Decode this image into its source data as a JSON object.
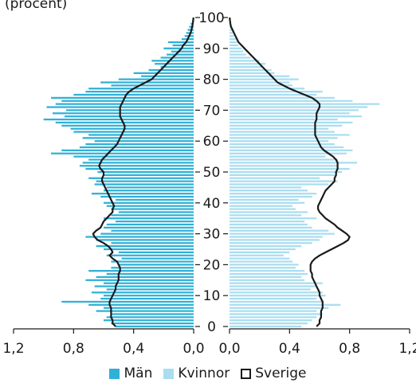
{
  "chart_data": {
    "type": "bar",
    "title": "(procent)",
    "layout": "population-pyramid",
    "ages": [
      0,
      1,
      2,
      3,
      4,
      5,
      6,
      7,
      8,
      9,
      10,
      11,
      12,
      13,
      14,
      15,
      16,
      17,
      18,
      19,
      20,
      21,
      22,
      23,
      24,
      25,
      26,
      27,
      28,
      29,
      30,
      31,
      32,
      33,
      34,
      35,
      36,
      37,
      38,
      39,
      40,
      41,
      42,
      43,
      44,
      45,
      46,
      47,
      48,
      49,
      50,
      51,
      52,
      53,
      54,
      55,
      56,
      57,
      58,
      59,
      60,
      61,
      62,
      63,
      64,
      65,
      66,
      67,
      68,
      69,
      70,
      71,
      72,
      73,
      74,
      75,
      76,
      77,
      78,
      79,
      80,
      81,
      82,
      83,
      84,
      85,
      86,
      87,
      88,
      89,
      90,
      91,
      92,
      93,
      94,
      95,
      96,
      97,
      98,
      99,
      100
    ],
    "y_ticks": [
      0,
      10,
      20,
      30,
      40,
      50,
      60,
      70,
      80,
      90,
      100
    ],
    "y_tick_labels": [
      "0",
      "10",
      "20",
      "30",
      "40",
      "50",
      "60",
      "70",
      "80",
      "90",
      "100"
    ],
    "x_tick_labels_left": [
      "1,2",
      "0,8",
      "0,4",
      "0,0"
    ],
    "x_tick_values_left": [
      1.2,
      0.8,
      0.4,
      0.0
    ],
    "x_tick_labels_right": [
      "0,0",
      "0,4",
      "0,8",
      "1,2"
    ],
    "x_tick_values_right": [
      0.0,
      0.4,
      0.8,
      1.2
    ],
    "xlim": [
      0,
      1.2
    ],
    "colors": {
      "man": "#2fb0d6",
      "kvinnor": "#a9ddf0",
      "sverige": "#1a1a1a"
    },
    "series": [
      {
        "name": "Män",
        "side": "left",
        "values": [
          0.52,
          0.55,
          0.6,
          0.58,
          0.55,
          0.65,
          0.6,
          0.7,
          0.88,
          0.62,
          0.6,
          0.68,
          0.58,
          0.66,
          0.6,
          0.72,
          0.65,
          0.58,
          0.7,
          0.55,
          0.5,
          0.55,
          0.48,
          0.58,
          0.5,
          0.6,
          0.65,
          0.55,
          0.65,
          0.72,
          0.62,
          0.55,
          0.6,
          0.58,
          0.52,
          0.6,
          0.55,
          0.5,
          0.55,
          0.58,
          0.6,
          0.52,
          0.62,
          0.68,
          0.6,
          0.58,
          0.66,
          0.65,
          0.7,
          0.6,
          0.64,
          0.72,
          0.76,
          0.74,
          0.7,
          0.8,
          0.95,
          0.88,
          0.76,
          0.72,
          0.66,
          0.74,
          0.7,
          0.8,
          0.82,
          0.88,
          0.92,
          1.0,
          0.86,
          0.94,
          0.85,
          0.98,
          0.92,
          0.88,
          0.95,
          0.8,
          0.72,
          0.7,
          0.55,
          0.62,
          0.5,
          0.35,
          0.4,
          0.3,
          0.22,
          0.26,
          0.28,
          0.22,
          0.18,
          0.15,
          0.2,
          0.14,
          0.17,
          0.08,
          0.06,
          0.05,
          0.04,
          0.03,
          0.02,
          0.01,
          0.0
        ]
      },
      {
        "name": "Kvinnor",
        "side": "right",
        "values": [
          0.48,
          0.52,
          0.55,
          0.58,
          0.62,
          0.58,
          0.66,
          0.74,
          0.62,
          0.58,
          0.64,
          0.62,
          0.54,
          0.58,
          0.62,
          0.5,
          0.48,
          0.52,
          0.5,
          0.44,
          0.46,
          0.42,
          0.4,
          0.36,
          0.4,
          0.44,
          0.48,
          0.55,
          0.6,
          0.62,
          0.7,
          0.66,
          0.55,
          0.52,
          0.5,
          0.58,
          0.48,
          0.52,
          0.44,
          0.42,
          0.5,
          0.46,
          0.55,
          0.58,
          0.52,
          0.48,
          0.66,
          0.72,
          0.6,
          0.7,
          0.75,
          0.8,
          0.72,
          0.85,
          0.72,
          0.64,
          0.78,
          0.82,
          0.76,
          0.7,
          0.66,
          0.72,
          0.8,
          0.7,
          0.66,
          0.75,
          0.82,
          0.72,
          0.88,
          0.8,
          0.86,
          0.92,
          1.0,
          0.82,
          0.7,
          0.58,
          0.62,
          0.5,
          0.42,
          0.4,
          0.46,
          0.4,
          0.3,
          0.28,
          0.22,
          0.24,
          0.2,
          0.14,
          0.11,
          0.09,
          0.08,
          0.06,
          0.05,
          0.04,
          0.03,
          0.02,
          0.02,
          0.01,
          0.01,
          0.0,
          0.0
        ]
      },
      {
        "name": "Sverige",
        "type": "line",
        "left": [
          0.52,
          0.54,
          0.54,
          0.55,
          0.55,
          0.55,
          0.55,
          0.56,
          0.56,
          0.55,
          0.54,
          0.53,
          0.52,
          0.52,
          0.51,
          0.5,
          0.5,
          0.5,
          0.49,
          0.49,
          0.5,
          0.51,
          0.54,
          0.56,
          0.54,
          0.55,
          0.57,
          0.6,
          0.64,
          0.66,
          0.67,
          0.65,
          0.62,
          0.61,
          0.6,
          0.58,
          0.56,
          0.54,
          0.54,
          0.53,
          0.54,
          0.55,
          0.56,
          0.57,
          0.58,
          0.59,
          0.6,
          0.61,
          0.61,
          0.6,
          0.6,
          0.62,
          0.63,
          0.62,
          0.61,
          0.59,
          0.57,
          0.55,
          0.53,
          0.51,
          0.5,
          0.49,
          0.48,
          0.47,
          0.46,
          0.46,
          0.47,
          0.48,
          0.49,
          0.49,
          0.49,
          0.49,
          0.48,
          0.47,
          0.46,
          0.45,
          0.43,
          0.4,
          0.36,
          0.32,
          0.28,
          0.26,
          0.24,
          0.22,
          0.2,
          0.18,
          0.16,
          0.14,
          0.12,
          0.1,
          0.08,
          0.07,
          0.05,
          0.04,
          0.03,
          0.02,
          0.015,
          0.01,
          0.006,
          0.003,
          0.001
        ],
        "right": [
          0.58,
          0.6,
          0.6,
          0.61,
          0.61,
          0.61,
          0.62,
          0.62,
          0.62,
          0.61,
          0.6,
          0.6,
          0.59,
          0.58,
          0.57,
          0.56,
          0.55,
          0.55,
          0.54,
          0.54,
          0.54,
          0.55,
          0.57,
          0.6,
          0.64,
          0.68,
          0.72,
          0.76,
          0.79,
          0.8,
          0.78,
          0.75,
          0.72,
          0.7,
          0.67,
          0.64,
          0.62,
          0.6,
          0.59,
          0.59,
          0.6,
          0.61,
          0.62,
          0.63,
          0.64,
          0.66,
          0.68,
          0.7,
          0.7,
          0.71,
          0.71,
          0.72,
          0.72,
          0.72,
          0.71,
          0.69,
          0.66,
          0.63,
          0.61,
          0.6,
          0.59,
          0.58,
          0.57,
          0.57,
          0.57,
          0.57,
          0.57,
          0.58,
          0.58,
          0.58,
          0.59,
          0.6,
          0.6,
          0.58,
          0.55,
          0.5,
          0.45,
          0.4,
          0.36,
          0.32,
          0.3,
          0.28,
          0.26,
          0.24,
          0.22,
          0.2,
          0.18,
          0.16,
          0.14,
          0.12,
          0.1,
          0.08,
          0.06,
          0.05,
          0.04,
          0.03,
          0.02,
          0.01,
          0.006,
          0.003,
          0.001
        ]
      }
    ],
    "legend": {
      "position": "bottom",
      "items": [
        {
          "label": "Män",
          "color": "#2fb0d6",
          "style": "fill"
        },
        {
          "label": "Kvinnor",
          "color": "#a9ddf0",
          "style": "fill"
        },
        {
          "label": "Sverige",
          "color": "#1a1a1a",
          "style": "outline"
        }
      ]
    }
  }
}
